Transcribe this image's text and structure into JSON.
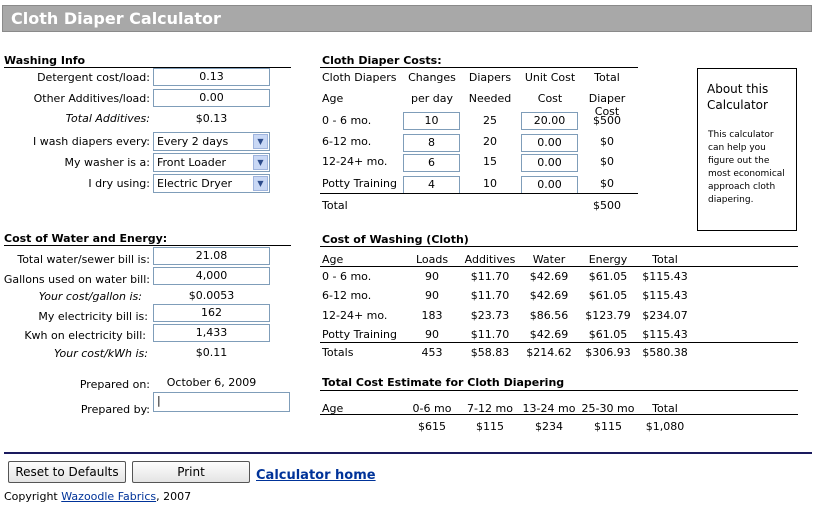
{
  "title": "Cloth Diaper Calculator",
  "washing": {
    "heading": "Washing Info",
    "detergent_label": "Detergent cost/load:",
    "detergent_value": "0.13",
    "additives_label": "Other Additives/load:",
    "additives_value": "0.00",
    "total_label": "Total Additives:",
    "total_value": "$0.13",
    "wash_label": "I wash diapers every:",
    "wash_value": "Every 2 days",
    "washer_label": "My washer is a:",
    "washer_value": "Front Loader",
    "dry_label": "I dry using:",
    "dry_value": "Electric Dryer"
  },
  "water": {
    "heading": "Cost of Water and Energy:",
    "bill_label": "Total water/sewer bill is:",
    "bill_value": "21.08",
    "gallons_label": "Gallons used on water bill:",
    "gallons_value": "4,000",
    "cpg_label": "Your cost/gallon is:",
    "cpg_value": "$0.0053",
    "elec_label": "My electricity bill is:",
    "elec_value": "162",
    "kwh_label": "Kwh on electricity bill:",
    "kwh_value": "1,433",
    "cpk_label": "Your cost/kWh is:",
    "cpk_value": "$0.11"
  },
  "prepared": {
    "on_label": "Prepared on:",
    "on_value": "October 6, 2009",
    "by_label": "Prepared by:"
  },
  "costs": {
    "heading": "Cloth Diaper Costs:",
    "h1a": "Cloth Diapers",
    "h1b": "Age",
    "h2a": "Changes",
    "h2b": "per day",
    "h3a": "Diapers",
    "h3b": "Needed",
    "h4a": "Unit Cost",
    "h4b": "Cost",
    "h5a": "Total",
    "h5b": "Diaper Cost",
    "rows": [
      {
        "age": "0 - 6 mo.",
        "changes": "10",
        "needed": "25",
        "unit": "20.00",
        "total": "$500"
      },
      {
        "age": "6-12 mo.",
        "changes": "8",
        "needed": "20",
        "unit": "0.00",
        "total": "$0"
      },
      {
        "age": "12-24+ mo.",
        "changes": "6",
        "needed": "15",
        "unit": "0.00",
        "total": "$0"
      },
      {
        "age": "Potty Training",
        "changes": "4",
        "needed": "10",
        "unit": "0.00",
        "total": "$0"
      }
    ],
    "total_label": "Total",
    "total_value": "$500"
  },
  "about": {
    "title": "About this Calculator",
    "text": "This calculator can help you figure out the most economical approach cloth diapering."
  },
  "washing_cost": {
    "heading": "Cost of Washing (Cloth)",
    "headers": [
      "Age",
      "Loads",
      "Additives",
      "Water",
      "Energy",
      "Total"
    ],
    "rows": [
      [
        "0 - 6 mo.",
        "90",
        "$11.70",
        "$42.69",
        "$61.05",
        "$115.43"
      ],
      [
        "6-12 mo.",
        "90",
        "$11.70",
        "$42.69",
        "$61.05",
        "$115.43"
      ],
      [
        "12-24+ mo.",
        "183",
        "$23.73",
        "$86.56",
        "$123.79",
        "$234.07"
      ],
      [
        "Potty Training",
        "90",
        "$11.70",
        "$42.69",
        "$61.05",
        "$115.43"
      ],
      [
        "Totals",
        "453",
        "$58.83",
        "$214.62",
        "$306.93",
        "$580.38"
      ]
    ]
  },
  "estimate": {
    "heading": "Total Cost Estimate for Cloth Diapering",
    "headers": [
      "Age",
      "0-6 mo",
      "7-12 mo",
      "13-24 mo",
      "25-30 mo",
      "Total"
    ],
    "values": [
      "$615",
      "$115",
      "$234",
      "$115",
      "$1,080"
    ]
  },
  "buttons": {
    "reset": "Reset to Defaults",
    "print": "Print",
    "home": "Calculator home"
  },
  "footer": {
    "copyright": "Copyright",
    "company": "Wazoodle Fabrics",
    "year": ", 2007"
  }
}
